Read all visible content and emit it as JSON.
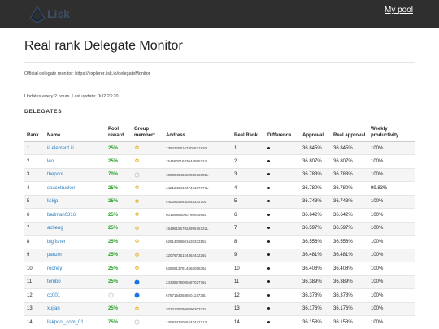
{
  "header": {
    "logo_text": "Lisk",
    "my_pool_label": "My pool"
  },
  "page": {
    "title": "Real rank Delegate Monitor",
    "official_text": "Official delegate monitor: https://explorer.lisk.io/delegateMonitor",
    "updates_text": "Updates every 2 hours. Last update: Jul2 23:20",
    "section_title": "DELEGATES"
  },
  "colors": {
    "topbar": "#2f2f2f",
    "link": "#2a7fc1",
    "reward_green": "#2aa02a",
    "group_gold": "#e0a800",
    "group_blue": "#1a73e8"
  },
  "table": {
    "headers": {
      "rank": "Rank",
      "name": "Name",
      "pool_reward": "Pool reward",
      "group_member": "Group member*",
      "address": "Address",
      "real_rank": "Real Rank",
      "difference": "Difference",
      "approval": "Approval",
      "real_approval": "Real approval",
      "weekly": "Weekly productivity"
    },
    "rows": [
      {
        "rank": "1",
        "name": "iii.element.iii",
        "reward": "25%",
        "group": "pin-gold-icon",
        "address": "13943256167405531820L",
        "real_rank": "1",
        "approval": "36.845%",
        "real_approval": "36.845%",
        "weekly": "100%"
      },
      {
        "rank": "2",
        "name": "leo",
        "reward": "25%",
        "group": "pin-gold-icon",
        "address": "15458001843044995724L",
        "real_rank": "2",
        "approval": "36.807%",
        "real_approval": "36.807%",
        "weekly": "100%"
      },
      {
        "rank": "3",
        "name": "thepool",
        "reward": "70%",
        "group": "circle-empty-icon",
        "address": "10839494368003872005L",
        "real_rank": "3",
        "approval": "36.783%",
        "real_approval": "36.783%",
        "weekly": "100%"
      },
      {
        "rank": "4",
        "name": "spacetrucker",
        "reward": "25%",
        "group": "pin-gold-icon",
        "address": "14212484126746187777L",
        "real_rank": "4",
        "approval": "36.780%",
        "real_approval": "36.780%",
        "weekly": "99.83%"
      },
      {
        "rank": "5",
        "name": "liskjp",
        "reward": "25%",
        "group": "pin-gold-icon",
        "address": "4402625644034434270L",
        "real_rank": "5",
        "approval": "36.743%",
        "real_approval": "36.743%",
        "weekly": "100%"
      },
      {
        "rank": "6",
        "name": "badman0316",
        "reward": "25%",
        "group": "pin-gold-icon",
        "address": "8019598606078093898L",
        "real_rank": "6",
        "approval": "36.642%",
        "real_approval": "36.642%",
        "weekly": "100%"
      },
      {
        "rank": "7",
        "name": "acheng",
        "reward": "25%",
        "group": "pin-gold-icon",
        "address": "15495156702499576722L",
        "real_rank": "7",
        "approval": "36.597%",
        "real_approval": "36.597%",
        "weekly": "100%"
      },
      {
        "rank": "8",
        "name": "bigfisher",
        "reward": "25%",
        "group": "pin-gold-icon",
        "address": "6281409850162033315L",
        "real_rank": "8",
        "approval": "36.556%",
        "real_approval": "36.556%",
        "weekly": "100%"
      },
      {
        "rank": "9",
        "name": "panzer",
        "reward": "25%",
        "group": "pin-gold-icon",
        "address": "3207673512436243226L",
        "real_rank": "9",
        "approval": "36.481%",
        "real_approval": "36.481%",
        "weekly": "100%"
      },
      {
        "rank": "10",
        "name": "rooney",
        "reward": "25%",
        "group": "pin-gold-icon",
        "address": "6356913781456505636L",
        "real_rank": "10",
        "approval": "36.408%",
        "real_approval": "36.408%",
        "weekly": "100%"
      },
      {
        "rank": "11",
        "name": "tembo",
        "reward": "25%",
        "group": "circle-blue-icon",
        "address": "2433857900558702776L",
        "real_rank": "11",
        "approval": "36.389%",
        "real_approval": "36.389%",
        "weekly": "100%"
      },
      {
        "rank": "12",
        "name": "cc001",
        "reward": "",
        "group": "circle-blue-icon",
        "reward_icon": "circle-empty-icon",
        "address": "6787154358850114730L",
        "real_rank": "12",
        "approval": "36.378%",
        "real_approval": "36.378%",
        "weekly": "100%"
      },
      {
        "rank": "13",
        "name": "xujian",
        "reward": "25%",
        "group": "pin-gold-icon",
        "address": "2074128296889030323L",
        "real_rank": "13",
        "approval": "36.176%",
        "real_approval": "36.176%",
        "weekly": "100%"
      },
      {
        "rank": "14",
        "name": "liskpool_com_01",
        "reward": "75%",
        "group": "circle-empty-icon",
        "address": "14593474056247442712L",
        "real_rank": "14",
        "approval": "36.158%",
        "real_approval": "36.158%",
        "weekly": "100%"
      }
    ]
  }
}
